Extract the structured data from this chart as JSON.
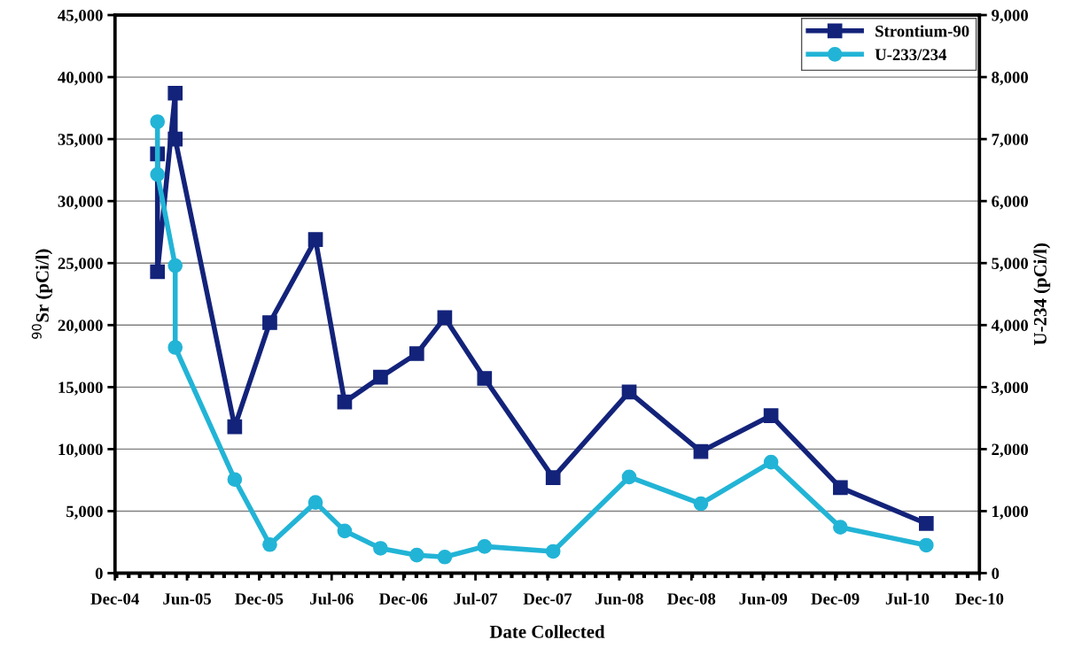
{
  "chart_data": {
    "type": "line",
    "xlabel": "Date Collected",
    "ylabel": "$^{90}$Sr (pCi/l)",
    "y2label": "U-234 (pCi/l)",
    "xlim": [
      "2004-12-28",
      "2010-12-31"
    ],
    "xticks": [
      {
        "value": "2004-12-28",
        "label": "Dec-04"
      },
      {
        "value": "2005-06-29",
        "label": "Jun-05"
      },
      {
        "value": "2005-12-29",
        "label": "Dec-05"
      },
      {
        "value": "2006-07-01",
        "label": "Jul-06"
      },
      {
        "value": "2006-12-30",
        "label": "Dec-06"
      },
      {
        "value": "2007-07-01",
        "label": "Jul-07"
      },
      {
        "value": "2007-12-31",
        "label": "Dec-07"
      },
      {
        "value": "2008-06-30",
        "label": "Jun-08"
      },
      {
        "value": "2008-12-30",
        "label": "Dec-08"
      },
      {
        "value": "2009-06-30",
        "label": "Jun-09"
      },
      {
        "value": "2009-12-30",
        "label": "Dec-09"
      },
      {
        "value": "2010-07-01",
        "label": "Jul-10"
      },
      {
        "value": "2010-12-31",
        "label": "Dec-10"
      }
    ],
    "x": [
      "2005-04-15",
      "2005-04-15",
      "2005-05-30",
      "2005-05-30",
      "2005-10-28",
      "2006-01-25",
      "2006-05-21",
      "2006-08-03",
      "2006-11-02",
      "2007-02-02",
      "2007-04-14",
      "2007-07-24",
      "2008-01-14",
      "2008-07-25",
      "2009-01-23",
      "2009-07-20",
      "2010-01-12",
      "2010-08-18"
    ],
    "ylim": [
      0,
      45000
    ],
    "yticks": [
      {
        "value": 0,
        "label": "0"
      },
      {
        "value": 5000,
        "label": "5,000"
      },
      {
        "value": 10000,
        "label": "10,000"
      },
      {
        "value": 15000,
        "label": "15,000"
      },
      {
        "value": 20000,
        "label": "20,000"
      },
      {
        "value": 25000,
        "label": "25,000"
      },
      {
        "value": 30000,
        "label": "30,000"
      },
      {
        "value": 35000,
        "label": "35,000"
      },
      {
        "value": 40000,
        "label": "40,000"
      },
      {
        "value": 45000,
        "label": "45,000"
      }
    ],
    "y2lim": [
      0,
      9000
    ],
    "y2ticks": [
      {
        "value": 0,
        "label": "0"
      },
      {
        "value": 1000,
        "label": "1,000"
      },
      {
        "value": 2000,
        "label": "2,000"
      },
      {
        "value": 3000,
        "label": "3,000"
      },
      {
        "value": 4000,
        "label": "4,000"
      },
      {
        "value": 5000,
        "label": "5,000"
      },
      {
        "value": 6000,
        "label": "6,000"
      },
      {
        "value": 7000,
        "label": "7,000"
      },
      {
        "value": 8000,
        "label": "8,000"
      },
      {
        "value": 9000,
        "label": "9,000"
      }
    ],
    "grid": "y",
    "legend": "top right",
    "line_style": "solid",
    "series": [
      {
        "name": "Strontium-90",
        "color": "#13237a",
        "marker": "square",
        "values": [
          33800,
          24300,
          38700,
          35000,
          11800,
          20200,
          26900,
          13800,
          15800,
          17700,
          20600,
          15700,
          7700,
          14600,
          9800,
          12700,
          6900,
          4000
        ]
      },
      {
        "name": "U-233/234",
        "color": "#22b4d6",
        "marker": "circle",
        "axis": "y2",
        "values": [
          7280,
          6430,
          4960,
          3640,
          1510,
          460,
          1140,
          680,
          400,
          290,
          260,
          430,
          350,
          1550,
          1120,
          1790,
          740,
          450
        ]
      }
    ]
  }
}
